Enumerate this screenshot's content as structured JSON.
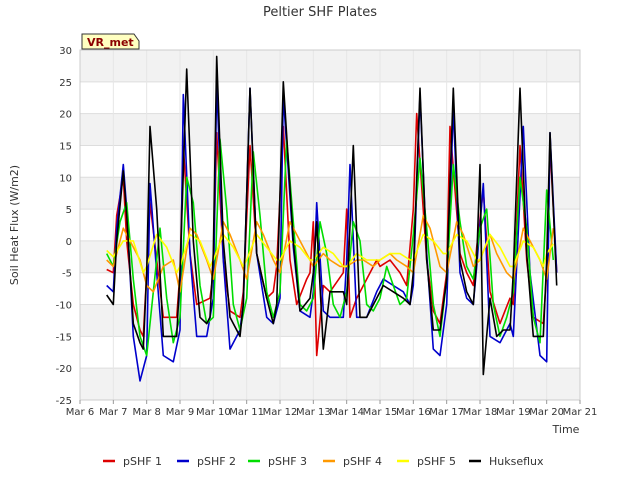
{
  "chart_data": {
    "type": "line",
    "title": "Peltier SHF Plates",
    "xlabel": "Time",
    "ylabel": "Soil Heat Flux (W/m2)",
    "site_label": "VR_met",
    "xlim": [
      6,
      21
    ],
    "ylim": [
      -25,
      30
    ],
    "x_ticks": [
      {
        "v": 6,
        "label": "Mar 6"
      },
      {
        "v": 7,
        "label": "Mar 7"
      },
      {
        "v": 8,
        "label": "Mar 8"
      },
      {
        "v": 9,
        "label": "Mar 9"
      },
      {
        "v": 10,
        "label": "Mar 10"
      },
      {
        "v": 11,
        "label": "Mar 11"
      },
      {
        "v": 12,
        "label": "Mar 12"
      },
      {
        "v": 13,
        "label": "Mar 13"
      },
      {
        "v": 14,
        "label": "Mar 14"
      },
      {
        "v": 15,
        "label": "Mar 15"
      },
      {
        "v": 16,
        "label": "Mar 16"
      },
      {
        "v": 17,
        "label": "Mar 17"
      },
      {
        "v": 18,
        "label": "Mar 18"
      },
      {
        "v": 19,
        "label": "Mar 19"
      },
      {
        "v": 20,
        "label": "Mar 20"
      },
      {
        "v": 21,
        "label": "Mar 21"
      }
    ],
    "y_ticks": [
      {
        "v": -25,
        "label": "-25"
      },
      {
        "v": -20,
        "label": "-20"
      },
      {
        "v": -15,
        "label": "-15"
      },
      {
        "v": -10,
        "label": "-10"
      },
      {
        "v": -5,
        "label": "-5"
      },
      {
        "v": 0,
        "label": "0"
      },
      {
        "v": 5,
        "label": "5"
      },
      {
        "v": 10,
        "label": "10"
      },
      {
        "v": 15,
        "label": "15"
      },
      {
        "v": 20,
        "label": "20"
      },
      {
        "v": 25,
        "label": "25"
      },
      {
        "v": 30,
        "label": "30"
      }
    ],
    "series": [
      {
        "name": "pSHF 1",
        "color": "#dd0000",
        "x": [
          6.8,
          7.0,
          7.1,
          7.3,
          7.4,
          7.6,
          7.8,
          7.9,
          8.0,
          8.1,
          8.3,
          8.5,
          8.9,
          9.0,
          9.1,
          9.3,
          9.5,
          9.9,
          10.0,
          10.1,
          10.3,
          10.5,
          10.8,
          10.9,
          11.1,
          11.3,
          11.6,
          11.8,
          11.9,
          12.1,
          12.3,
          12.5,
          12.8,
          12.9,
          13.0,
          13.1,
          13.3,
          13.5,
          13.9,
          14.0,
          14.1,
          14.3,
          14.6,
          14.9,
          15.0,
          15.3,
          15.6,
          15.8,
          16.0,
          16.1,
          16.4,
          16.6,
          16.8,
          17.0,
          17.1,
          17.4,
          17.6,
          17.8,
          17.9,
          18.1,
          18.3,
          18.6,
          18.9,
          19.0,
          19.2,
          19.4,
          19.6,
          19.9,
          20.0,
          20.1,
          20.3
        ],
        "y": [
          -4.5,
          -5,
          4,
          10,
          0,
          -10,
          -14,
          -15,
          -5,
          6,
          -3,
          -12,
          -12,
          -5,
          15,
          -2,
          -10,
          -9,
          -5,
          17,
          -3,
          -11,
          -12,
          -8,
          15,
          -2,
          -9,
          -8,
          -4,
          18,
          -3,
          -10,
          -6,
          -5,
          3,
          -18,
          -7,
          -8,
          -5,
          5,
          -12,
          -9,
          -6,
          -3,
          -4,
          -3,
          -5,
          -7,
          5,
          20,
          -3,
          -11,
          -13,
          -5,
          18,
          -2,
          -5,
          -7,
          -1,
          8,
          -8,
          -13,
          -9,
          -10,
          15,
          -3,
          -12,
          -13,
          -5,
          15,
          -5
        ]
      },
      {
        "name": "pSHF 2",
        "color": "#0000cc",
        "x": [
          6.8,
          7.0,
          7.1,
          7.3,
          7.4,
          7.6,
          7.8,
          8.0,
          8.1,
          8.3,
          8.5,
          8.8,
          9.0,
          9.1,
          9.3,
          9.5,
          9.8,
          10.0,
          10.1,
          10.3,
          10.5,
          10.8,
          10.9,
          11.1,
          11.3,
          11.6,
          11.8,
          12.0,
          12.1,
          12.4,
          12.6,
          12.9,
          13.0,
          13.1,
          13.3,
          13.5,
          13.9,
          14.0,
          14.1,
          14.3,
          14.6,
          14.9,
          15.1,
          15.4,
          15.7,
          15.9,
          16.0,
          16.2,
          16.4,
          16.6,
          16.8,
          17.0,
          17.2,
          17.4,
          17.6,
          17.8,
          17.9,
          18.1,
          18.3,
          18.6,
          18.9,
          19.0,
          19.3,
          19.5,
          19.8,
          20.0,
          20.1,
          20.3
        ],
        "y": [
          -7,
          -8,
          2,
          12,
          5,
          -15,
          -22,
          -18,
          9,
          -5,
          -18,
          -19,
          -14,
          23,
          -2,
          -15,
          -15,
          -9,
          25,
          -3,
          -17,
          -14,
          -10,
          24,
          -2,
          -12,
          -13,
          -9,
          23,
          -1,
          -11,
          -12,
          -8,
          6,
          -11,
          -12,
          -12,
          -3,
          12,
          -12,
          -12,
          -8,
          -6,
          -7,
          -8,
          -10,
          -7,
          23,
          -2,
          -17,
          -18,
          -10,
          21,
          -5,
          -9,
          -10,
          -4,
          9,
          -15,
          -16,
          -13,
          -15,
          18,
          -5,
          -18,
          -19,
          17,
          -5
        ]
      },
      {
        "name": "pSHF 3",
        "color": "#00dd00",
        "x": [
          6.8,
          7.0,
          7.2,
          7.4,
          7.6,
          7.8,
          8.0,
          8.2,
          8.4,
          8.6,
          8.8,
          9.0,
          9.2,
          9.4,
          9.6,
          9.8,
          10.0,
          10.2,
          10.4,
          10.6,
          10.8,
          11.0,
          11.2,
          11.4,
          11.6,
          11.8,
          12.0,
          12.2,
          12.4,
          12.6,
          12.8,
          13.0,
          13.2,
          13.4,
          13.6,
          13.8,
          14.0,
          14.2,
          14.4,
          14.6,
          14.8,
          15.0,
          15.2,
          15.4,
          15.6,
          15.8,
          16.0,
          16.2,
          16.4,
          16.6,
          16.8,
          17.0,
          17.2,
          17.4,
          17.6,
          17.8,
          18.0,
          18.2,
          18.4,
          18.6,
          18.8,
          19.0,
          19.2,
          19.4,
          19.6,
          19.8,
          20.0,
          20.2
        ],
        "y": [
          -2,
          -4,
          3,
          6,
          -6,
          -15,
          -18,
          -8,
          2,
          -9,
          -16,
          -12,
          10,
          6,
          -7,
          -13,
          -12,
          16,
          5,
          -10,
          -14,
          -9,
          14,
          4,
          -8,
          -12,
          -8,
          16,
          3,
          -10,
          -11,
          -9,
          3,
          -2,
          -10,
          -12,
          -8,
          3,
          0,
          -10,
          -11,
          -9,
          -4,
          -7,
          -10,
          -9,
          1,
          13,
          2,
          -10,
          -15,
          -6,
          12,
          3,
          -4,
          -6,
          2,
          5,
          -10,
          -15,
          -12,
          -8,
          10,
          2,
          -12,
          -16,
          8,
          -3
        ]
      },
      {
        "name": "pSHF 4",
        "color": "#ff9900",
        "x": [
          6.8,
          7.0,
          7.3,
          7.5,
          7.8,
          8.0,
          8.2,
          8.5,
          8.8,
          9.0,
          9.3,
          9.5,
          9.8,
          10.0,
          10.3,
          10.5,
          10.8,
          11.0,
          11.3,
          11.5,
          11.8,
          12.0,
          12.3,
          12.5,
          12.8,
          13.0,
          13.3,
          13.5,
          13.8,
          14.0,
          14.3,
          14.5,
          14.8,
          15.0,
          15.3,
          15.5,
          15.8,
          16.0,
          16.3,
          16.5,
          16.8,
          17.0,
          17.3,
          17.5,
          17.8,
          18.0,
          18.3,
          18.5,
          18.8,
          19.0,
          19.3,
          19.5,
          19.8,
          20.0,
          20.2
        ],
        "y": [
          -3,
          -4,
          2,
          0,
          -3,
          -7,
          -8,
          -4,
          -3,
          -8,
          2,
          1,
          -3,
          -6,
          3,
          1,
          -3,
          -6,
          3,
          1,
          -3,
          -5,
          3,
          1,
          -2,
          -4,
          -2,
          -3,
          -4,
          -4,
          -3,
          -3,
          -4,
          -3,
          -2,
          -3,
          -4,
          -5,
          4,
          2,
          -4,
          -5,
          3,
          1,
          -4,
          -3,
          1,
          -2,
          -5,
          -6,
          2,
          0,
          -3,
          -6,
          2
        ]
      },
      {
        "name": "pSHF 5",
        "color": "#ffff00",
        "x": [
          6.8,
          7.0,
          7.3,
          7.6,
          7.9,
          8.0,
          8.3,
          8.6,
          8.9,
          9.0,
          9.3,
          9.6,
          9.9,
          10.0,
          10.3,
          10.6,
          10.9,
          11.0,
          11.3,
          11.6,
          11.9,
          12.0,
          12.3,
          12.6,
          12.9,
          13.0,
          13.3,
          13.6,
          13.9,
          14.0,
          14.3,
          14.6,
          14.9,
          15.0,
          15.3,
          15.6,
          15.9,
          16.0,
          16.3,
          16.6,
          16.9,
          17.0,
          17.3,
          17.6,
          17.9,
          18.0,
          18.3,
          18.6,
          18.9,
          19.0,
          19.3,
          19.6,
          19.9,
          20.0,
          20.2
        ],
        "y": [
          -1.5,
          -2.5,
          0,
          0,
          -5,
          -4,
          1,
          -1,
          -5,
          -4,
          1,
          0,
          -4,
          -3,
          1,
          -1,
          -4,
          -3,
          1,
          -1,
          -3,
          -3,
          0,
          -1,
          -3,
          -3,
          -1,
          -2,
          -4,
          -4,
          -2,
          -3,
          -3,
          -3,
          -2,
          -2,
          -3,
          -3,
          1,
          0,
          -2,
          -2,
          1,
          0,
          -3,
          -3,
          1,
          -1,
          -4,
          -4,
          0,
          -1,
          -4,
          -2,
          -0.5
        ]
      },
      {
        "name": "Hukseflux",
        "color": "#000000",
        "x": [
          6.8,
          7.0,
          7.1,
          7.3,
          7.4,
          7.6,
          7.8,
          7.9,
          8.0,
          8.1,
          8.3,
          8.5,
          8.8,
          8.9,
          9.0,
          9.2,
          9.4,
          9.6,
          9.8,
          9.9,
          10.0,
          10.1,
          10.3,
          10.5,
          10.8,
          10.9,
          11.1,
          11.3,
          11.6,
          11.8,
          11.9,
          12.1,
          12.4,
          12.6,
          12.9,
          13.0,
          13.1,
          13.3,
          13.5,
          13.9,
          14.0,
          14.2,
          14.4,
          14.6,
          14.9,
          15.1,
          15.4,
          15.7,
          15.9,
          16.0,
          16.2,
          16.4,
          16.6,
          16.8,
          17.0,
          17.2,
          17.4,
          17.6,
          17.8,
          17.9,
          18.0,
          18.1,
          18.3,
          18.5,
          18.7,
          18.9,
          19.0,
          19.2,
          19.4,
          19.6,
          19.9,
          20.0,
          20.1,
          20.3
        ],
        "y": [
          -8.5,
          -10,
          0,
          11,
          4,
          -13,
          -16,
          -17,
          -5,
          18,
          5,
          -15,
          -15,
          -15,
          -5,
          27,
          0,
          -12,
          -13,
          -12,
          -2,
          29,
          0,
          -12,
          -15,
          -10,
          24,
          -2,
          -9,
          -13,
          -10,
          25,
          0,
          -11,
          -9,
          -5,
          3,
          -17,
          -8,
          -8,
          -10,
          15,
          -12,
          -12,
          -9,
          -7,
          -8,
          -9,
          -10,
          -5,
          24,
          -3,
          -14,
          -14,
          -6,
          24,
          -3,
          -8,
          -10,
          -3,
          12,
          -21,
          -9,
          -15,
          -14,
          -14,
          -5,
          24,
          -2,
          -15,
          -15,
          -3,
          17,
          -7
        ]
      }
    ]
  }
}
